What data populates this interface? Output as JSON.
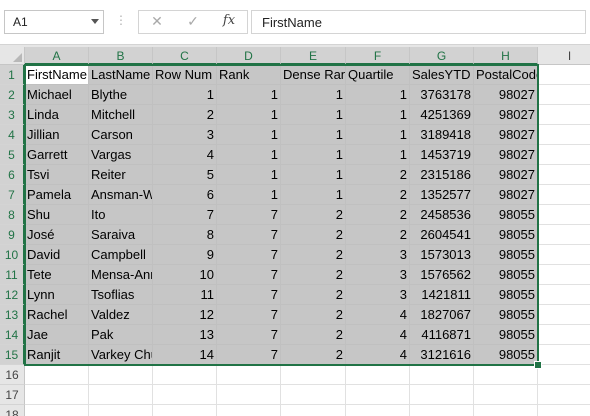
{
  "name_box": {
    "value": "A1"
  },
  "formula_bar": {
    "cancel_icon": "close-icon",
    "enter_icon": "check-icon",
    "fx_label": "fx",
    "content": "FirstName"
  },
  "columns": [
    "A",
    "B",
    "C",
    "D",
    "E",
    "F",
    "G",
    "H",
    "I"
  ],
  "row_numbers": [
    "1",
    "2",
    "3",
    "4",
    "5",
    "6",
    "7",
    "8",
    "9",
    "10",
    "11",
    "12",
    "13",
    "14",
    "15",
    "16",
    "17",
    "18"
  ],
  "header_row": [
    "FirstName",
    "LastName",
    "Row Num",
    "Rank",
    "Dense Rank",
    "Quartile",
    "SalesYTD",
    "PostalCode"
  ],
  "rows": [
    [
      "Michael",
      "Blythe",
      "1",
      "1",
      "1",
      "1",
      "3763178",
      "98027"
    ],
    [
      "Linda",
      "Mitchell",
      "2",
      "1",
      "1",
      "1",
      "4251369",
      "98027"
    ],
    [
      "Jillian",
      "Carson",
      "3",
      "1",
      "1",
      "1",
      "3189418",
      "98027"
    ],
    [
      "Garrett",
      "Vargas",
      "4",
      "1",
      "1",
      "1",
      "1453719",
      "98027"
    ],
    [
      "Tsvi",
      "Reiter",
      "5",
      "1",
      "1",
      "2",
      "2315186",
      "98027"
    ],
    [
      "Pamela",
      "Ansman-Wolfe",
      "6",
      "1",
      "1",
      "2",
      "1352577",
      "98027"
    ],
    [
      "Shu",
      "Ito",
      "7",
      "7",
      "2",
      "2",
      "2458536",
      "98055"
    ],
    [
      "José",
      "Saraiva",
      "8",
      "7",
      "2",
      "2",
      "2604541",
      "98055"
    ],
    [
      "David",
      "Campbell",
      "9",
      "7",
      "2",
      "3",
      "1573013",
      "98055"
    ],
    [
      "Tete",
      "Mensa-Annan",
      "10",
      "7",
      "2",
      "3",
      "1576562",
      "98055"
    ],
    [
      "Lynn",
      "Tsoflias",
      "11",
      "7",
      "2",
      "3",
      "1421811",
      "98055"
    ],
    [
      "Rachel",
      "Valdez",
      "12",
      "7",
      "2",
      "4",
      "1827067",
      "98055"
    ],
    [
      "Jae",
      "Pak",
      "13",
      "7",
      "2",
      "4",
      "4116871",
      "98055"
    ],
    [
      "Ranjit",
      "Varkey Chudukatil",
      "14",
      "7",
      "2",
      "4",
      "3121616",
      "98055"
    ]
  ],
  "colors": {
    "accent": "#217346",
    "selection_fill": "#c6c6c6",
    "header_fill": "#e6e6e6"
  }
}
